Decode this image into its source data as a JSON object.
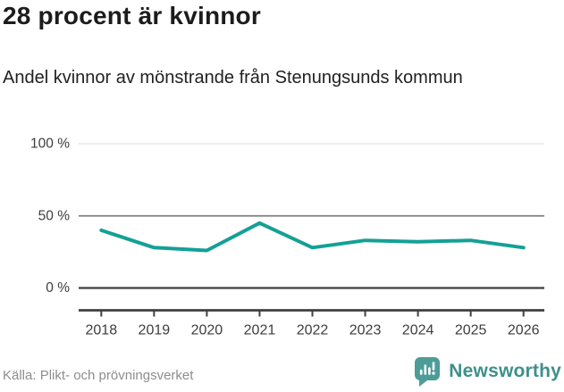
{
  "header": {
    "title": "28 procent är kvinnor",
    "subtitle": "Andel kvinnor av mönstrande från Stenungsunds kommun"
  },
  "chart_data": {
    "type": "line",
    "title": "28 procent är kvinnor",
    "subtitle": "Andel kvinnor av mönstrande från Stenungsunds kommun",
    "categories": [
      "2018",
      "2019",
      "2020",
      "2021",
      "2022",
      "2023",
      "2024",
      "2025",
      "2026"
    ],
    "series": [
      {
        "name": "Andel kvinnor av mönstrande",
        "values": [
          40,
          28,
          26,
          45,
          28,
          33,
          32,
          33,
          28
        ]
      }
    ],
    "xlabel": "",
    "ylabel": "",
    "ylim": [
      0,
      100
    ],
    "yticks": [
      {
        "value": 0,
        "label": "0 %"
      },
      {
        "value": 50,
        "label": "50 %"
      },
      {
        "value": 100,
        "label": "100 %"
      }
    ],
    "grid": true,
    "legend": "none",
    "unit": "%"
  },
  "footer": {
    "source": "Källa: Plikt- och prövningsverket",
    "brand": "Newsworthy"
  },
  "colors": {
    "line": "#14a096",
    "axis_dark": "#3f3f3f",
    "grid_mid": "#7f7f7f",
    "grid_light": "#e3e3e3",
    "tick_label": "#3d3d3d",
    "brand_teal": "#4d9c97",
    "brand_text": "#3e908c",
    "source_text": "#8d8d8d"
  }
}
